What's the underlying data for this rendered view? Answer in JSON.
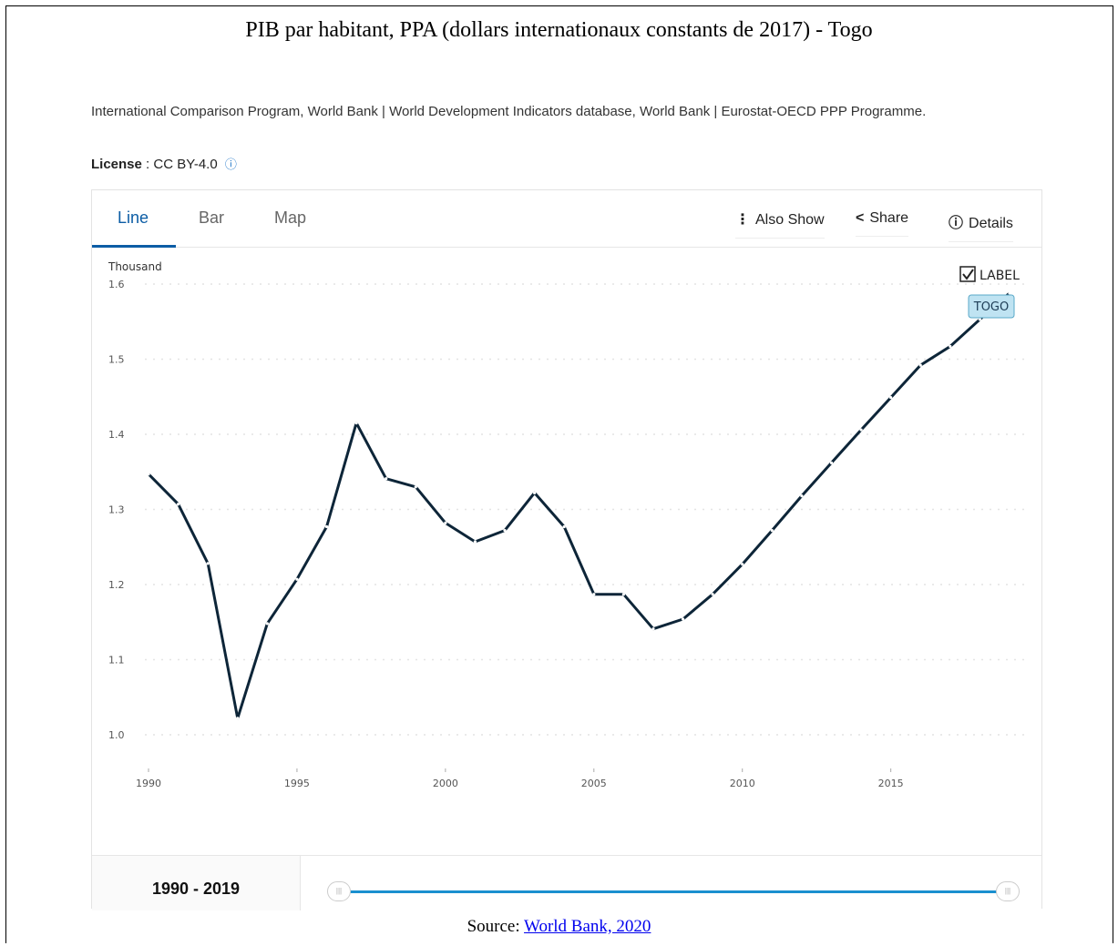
{
  "document": {
    "title": "PIB par habitant, PPA (dollars internationaux constants de 2017) - Togo",
    "source_text": "International Comparison Program, World Bank | World Development Indicators database, World Bank | Eurostat-OECD PPP Programme.",
    "license_label": "License",
    "license_value": ": CC BY-4.0",
    "footer_prefix": "Source: ",
    "footer_link": "World Bank, 2020"
  },
  "tabs": [
    {
      "label": "Line",
      "active": true
    },
    {
      "label": "Bar",
      "active": false
    },
    {
      "label": "Map",
      "active": false
    }
  ],
  "actions": {
    "also_show": "Also Show",
    "share": "Share",
    "details": "Details"
  },
  "label_toggle": {
    "text": "LABEL",
    "checked": true
  },
  "range": {
    "label": "1990 - 2019",
    "start_fraction": 0,
    "end_fraction": 1
  },
  "chart_data": {
    "type": "line",
    "unit_label": "Thousand",
    "ylim": [
      1.0,
      1.6
    ],
    "yticks": [
      "1.6",
      "1.5",
      "1.4",
      "1.3",
      "1.2",
      "1.1",
      "1.0"
    ],
    "xticks": [
      "1990",
      "1995",
      "2000",
      "2005",
      "2010",
      "2015"
    ],
    "grid": true,
    "x": [
      1990,
      1991,
      1992,
      1993,
      1994,
      1995,
      1996,
      1997,
      1998,
      1999,
      2000,
      2001,
      2002,
      2003,
      2004,
      2005,
      2006,
      2007,
      2008,
      2009,
      2010,
      2011,
      2012,
      2013,
      2014,
      2015,
      2016,
      2017,
      2018,
      2019
    ],
    "series": [
      {
        "name": "TOGO",
        "color": "#0d2538",
        "values": [
          1.347,
          1.307,
          1.228,
          1.022,
          1.148,
          1.207,
          1.277,
          1.415,
          1.341,
          1.33,
          1.282,
          1.257,
          1.272,
          1.322,
          1.277,
          1.187,
          1.187,
          1.141,
          1.154,
          1.187,
          1.227,
          1.272,
          1.318,
          1.362,
          1.406,
          1.449,
          1.492,
          1.517,
          1.553,
          1.588
        ]
      }
    ]
  }
}
